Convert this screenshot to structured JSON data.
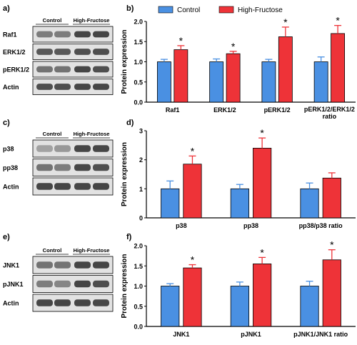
{
  "colors": {
    "control": "#4a90e2",
    "treatment": "#ee3338",
    "axis": "#000000",
    "blot_bg": "#e2e2e2",
    "band_dark": "#2a2a2a"
  },
  "legend": {
    "control": "Control",
    "treatment": "High-Fructose"
  },
  "blots": [
    {
      "panel_label": "a)",
      "group_labels": [
        "Control",
        "High-Fructose"
      ],
      "rows": [
        "Raf1",
        "ERK1/2",
        "pERK1/2",
        "Actin"
      ]
    },
    {
      "panel_label": "c)",
      "group_labels": [
        "Control",
        "High-Fructose"
      ],
      "rows": [
        "p38",
        "pp38",
        "Actin"
      ]
    },
    {
      "panel_label": "e)",
      "group_labels": [
        "Control",
        "High-Fructose"
      ],
      "rows": [
        "JNK1",
        "pJNK1",
        "Actin"
      ]
    }
  ],
  "chart_data": [
    {
      "panel_label": "b)",
      "type": "bar",
      "ylabel": "Protein expression",
      "ylim": [
        0,
        2.0
      ],
      "yticks": [
        "0.0",
        "0.5",
        "1.0",
        "1.5",
        "2.0"
      ],
      "categories": [
        "Raf1",
        "ERK1/2",
        "pERK1/2",
        "pERK1/2/ERK1/2 ratio"
      ],
      "series": [
        {
          "name": "Control",
          "values": [
            1.0,
            1.0,
            1.0,
            1.0
          ],
          "errors": [
            0.06,
            0.07,
            0.06,
            0.12
          ]
        },
        {
          "name": "High-Fructose",
          "values": [
            1.3,
            1.2,
            1.62,
            1.7
          ],
          "errors": [
            0.1,
            0.06,
            0.24,
            0.2
          ]
        }
      ],
      "significance": [
        "*",
        "*",
        "*",
        "*"
      ]
    },
    {
      "panel_label": "d)",
      "type": "bar",
      "ylabel": "Protein expression",
      "ylim": [
        0,
        3
      ],
      "yticks": [
        "0",
        "1",
        "2",
        "3"
      ],
      "categories": [
        "p38",
        "pp38",
        "pp38/p38 ratio"
      ],
      "series": [
        {
          "name": "Control",
          "values": [
            1.0,
            1.0,
            1.0
          ],
          "errors": [
            0.27,
            0.15,
            0.2
          ]
        },
        {
          "name": "High-Fructose",
          "values": [
            1.85,
            2.4,
            1.37
          ],
          "errors": [
            0.28,
            0.35,
            0.18
          ]
        }
      ],
      "significance": [
        "*",
        "*",
        ""
      ]
    },
    {
      "panel_label": "f)",
      "type": "bar",
      "ylabel": "Protein expression",
      "ylim": [
        0,
        2.0
      ],
      "yticks": [
        "0.0",
        "0.5",
        "1.0",
        "1.5",
        "2.0"
      ],
      "categories": [
        "JNK1",
        "pJNK1",
        "pJNK1/JNK1 ratio"
      ],
      "series": [
        {
          "name": "Control",
          "values": [
            1.0,
            1.0,
            1.0
          ],
          "errors": [
            0.06,
            0.1,
            0.12
          ]
        },
        {
          "name": "High-Fructose",
          "values": [
            1.45,
            1.55,
            1.65
          ],
          "errors": [
            0.08,
            0.16,
            0.25
          ]
        }
      ],
      "significance": [
        "*",
        "*",
        "*"
      ]
    }
  ]
}
